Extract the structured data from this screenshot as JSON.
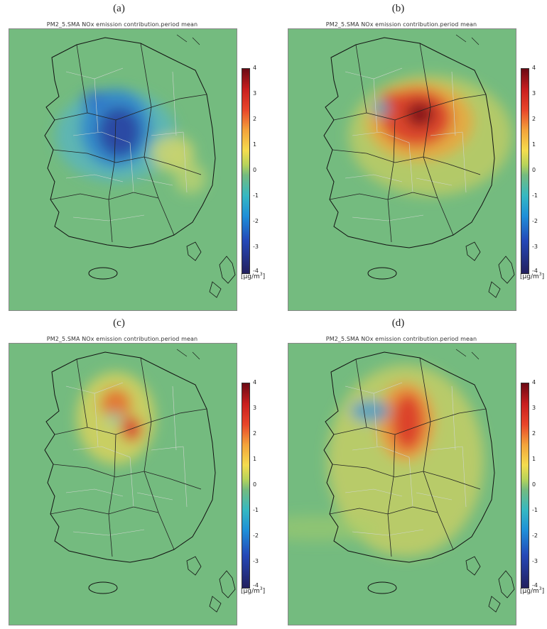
{
  "panels": [
    {
      "label": "(a)",
      "title": "PM2_5.SMA NOx emission contribution.period mean",
      "pattern": "a"
    },
    {
      "label": "(b)",
      "title": "PM2_5.SMA NOx emission contribution.period mean",
      "pattern": "b"
    },
    {
      "label": "(c)",
      "title": "PM2_5.SMA NOx emission contribution.period mean",
      "pattern": "c"
    },
    {
      "label": "(d)",
      "title": "PM2_5.SMA NOx emission contribution.period mean",
      "pattern": "d"
    }
  ],
  "colorbar": {
    "ticks": [
      "4",
      "3",
      "2",
      "1",
      "0",
      "-1",
      "-2",
      "-3",
      "-4"
    ],
    "unit": "[μg/m",
    "unit_sup": "3",
    "unit_close": "]"
  },
  "colors": {
    "background": "#74bb7f",
    "coast": "#111111",
    "province": "#222222",
    "district": "#cfd6cf"
  }
}
